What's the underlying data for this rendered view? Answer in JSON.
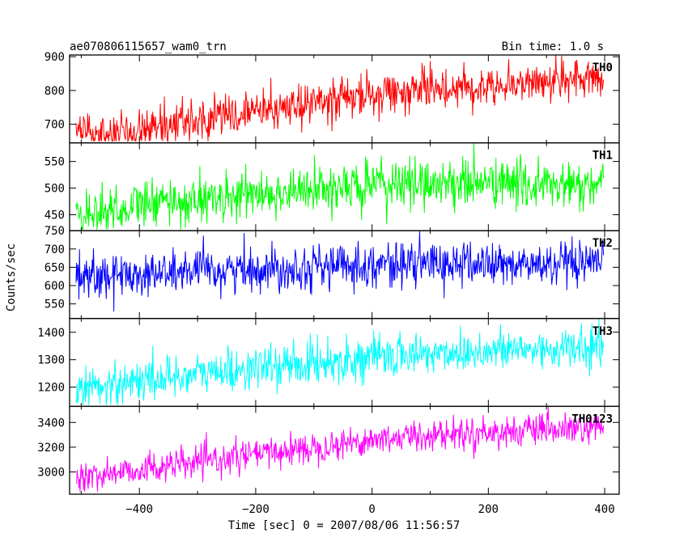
{
  "header": {
    "title": "ae070806115657_wam0_trn",
    "bin_time": "Bin time: 1.0 s"
  },
  "axes": {
    "ylabel": "Counts/sec",
    "xlabel": "Time [sec] 0 = 2007/08/06 11:56:57"
  },
  "chart_data": {
    "type": "line",
    "title": "ae070806115657_wam0_trn",
    "xlabel": "Time [sec] 0 = 2007/08/06 11:56:57",
    "ylabel": "Counts/sec",
    "xlim": [
      -520,
      425
    ],
    "x_range": [
      -509,
      398
    ],
    "bin_time_s": 1.0,
    "x_ticks": [
      -400,
      -200,
      0,
      200,
      400
    ],
    "x_tick_labels": [
      "−400",
      "−200",
      "0",
      "200",
      "400"
    ],
    "panels": [
      {
        "name": "TH0",
        "color": "#ff0000",
        "ylim": [
          645,
          905
        ],
        "y_ticks": [
          700,
          800,
          900
        ],
        "y_tick_labels": [
          "700",
          "800",
          "900"
        ],
        "trend": {
          "x": [
            -509,
            -400,
            -300,
            -200,
            -100,
            0,
            100,
            200,
            300,
            398
          ],
          "y": [
            668,
            690,
            712,
            738,
            762,
            788,
            805,
            815,
            828,
            835
          ]
        },
        "noise_sd": 30,
        "clip": [
          650,
          905
        ]
      },
      {
        "name": "TH1",
        "color": "#00ff00",
        "ylim": [
          420,
          585
        ],
        "y_ticks": [
          450,
          500,
          550
        ],
        "y_tick_labels": [
          "450",
          "500",
          "550"
        ],
        "trend": {
          "x": [
            -509,
            -400,
            -300,
            -200,
            -100,
            0,
            100,
            200,
            300,
            398
          ],
          "y": [
            450,
            468,
            478,
            488,
            496,
            505,
            510,
            510,
            505,
            500
          ]
        },
        "noise_sd": 23,
        "clip": [
          422,
          585
        ]
      },
      {
        "name": "TH2",
        "color": "#0000ff",
        "ylim": [
          510,
          750
        ],
        "y_ticks": [
          550,
          600,
          650,
          700,
          750
        ],
        "y_tick_labels": [
          "550",
          "600",
          "650",
          "700",
          "750"
        ],
        "trend": {
          "x": [
            -509,
            -400,
            -300,
            -200,
            -100,
            0,
            100,
            200,
            300,
            398
          ],
          "y": [
            625,
            632,
            638,
            645,
            652,
            658,
            660,
            658,
            655,
            650
          ]
        },
        "noise_sd": 30,
        "clip": [
          512,
          750
        ]
      },
      {
        "name": "TH3",
        "color": "#00ffff",
        "ylim": [
          1130,
          1450
        ],
        "y_ticks": [
          1200,
          1300,
          1400
        ],
        "y_tick_labels": [
          "1200",
          "1300",
          "1400"
        ],
        "trend": {
          "x": [
            -509,
            -400,
            -300,
            -200,
            -100,
            0,
            100,
            200,
            300,
            398
          ],
          "y": [
            1195,
            1225,
            1248,
            1268,
            1288,
            1308,
            1322,
            1332,
            1338,
            1340
          ]
        },
        "noise_sd": 38,
        "clip": [
          1135,
          1450
        ]
      },
      {
        "name": "TH0123",
        "color": "#ff00ff",
        "ylim": [
          2820,
          3530
        ],
        "y_ticks": [
          3000,
          3200,
          3400
        ],
        "y_tick_labels": [
          "3000",
          "3200",
          "3400"
        ],
        "trend": {
          "x": [
            -509,
            -400,
            -300,
            -200,
            -100,
            0,
            100,
            200,
            300,
            398
          ],
          "y": [
            2950,
            3020,
            3075,
            3140,
            3200,
            3260,
            3300,
            3320,
            3335,
            3345
          ]
        },
        "noise_sd": 62,
        "clip": [
          2840,
          3530
        ]
      }
    ]
  }
}
